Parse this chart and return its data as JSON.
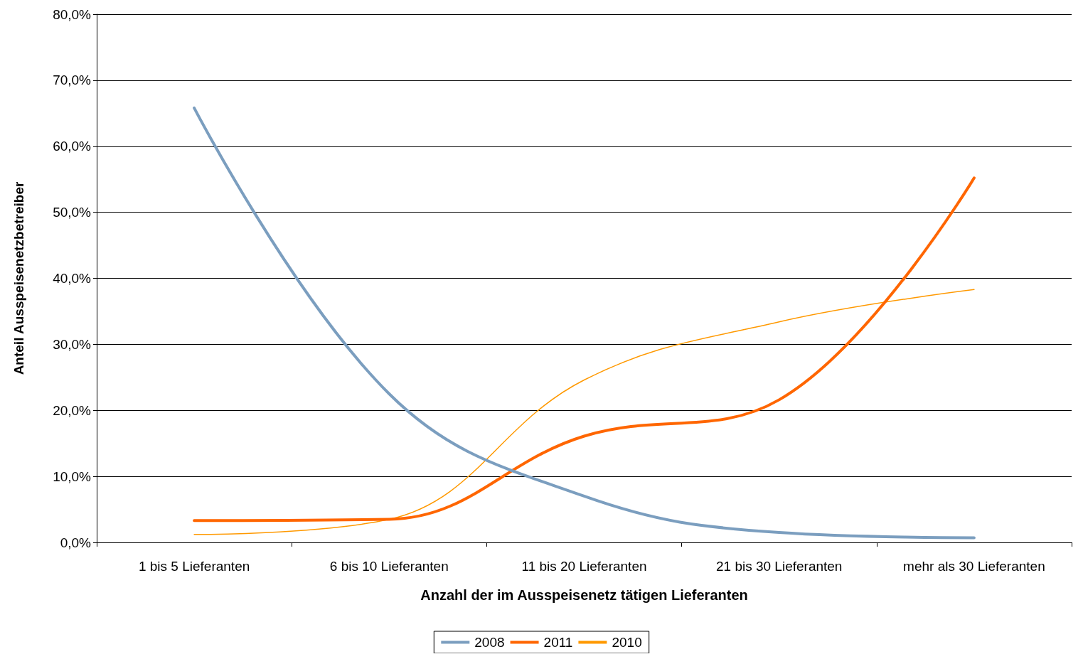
{
  "chart_data": {
    "type": "line",
    "xlabel": "Anzahl der im Ausspeisenetz tätigen Lieferanten",
    "ylabel": "Anteil Ausspeisenetzbetreiber",
    "categories": [
      "1 bis 5 Lieferanten",
      "6 bis 10 Lieferanten",
      "11 bis 20 Lieferanten",
      "21 bis 30 Lieferanten",
      "mehr als 30 Lieferanten"
    ],
    "series": [
      {
        "name": "2008",
        "color": "#7b9ebf",
        "values": [
          65.8,
          22.5,
          7.0,
          1.5,
          0.7
        ]
      },
      {
        "name": "2011",
        "color": "#ff6600",
        "values": [
          3.3,
          3.5,
          16.1,
          21.6,
          55.2
        ]
      },
      {
        "name": "2010",
        "color": "#ff9900",
        "values": [
          1.2,
          3.5,
          24.6,
          33.4,
          38.3
        ]
      }
    ],
    "ylim": [
      0,
      80
    ],
    "yticks": [
      {
        "value": 0,
        "label": "0,0%"
      },
      {
        "value": 10,
        "label": "10,0%"
      },
      {
        "value": 20,
        "label": "20,0%"
      },
      {
        "value": 30,
        "label": "30,0%"
      },
      {
        "value": 40,
        "label": "40,0%"
      },
      {
        "value": 50,
        "label": "50,0%"
      },
      {
        "value": 60,
        "label": "60,0%"
      },
      {
        "value": 70,
        "label": "70,0%"
      },
      {
        "value": 80,
        "label": "80,0%"
      }
    ],
    "grid": "y",
    "legend": "bottom",
    "marker": "none",
    "line_style": "solid"
  }
}
